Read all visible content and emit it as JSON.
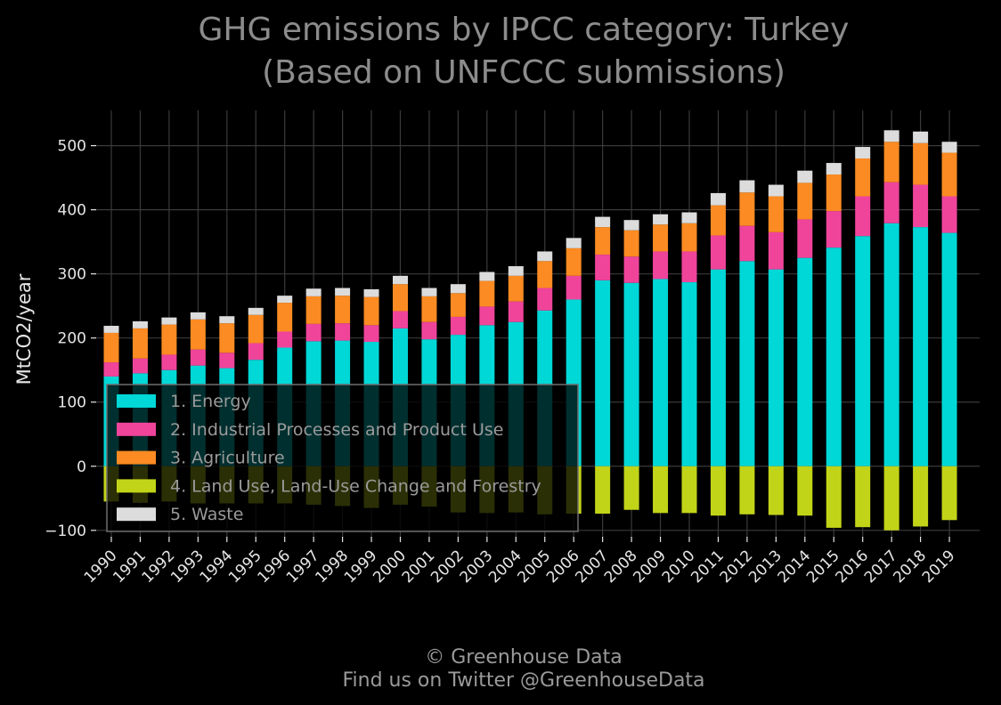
{
  "chart_data": {
    "type": "bar",
    "stacked": true,
    "title": [
      "GHG emissions by IPCC category: Turkey",
      "(Based on UNFCCC submissions)"
    ],
    "ylabel": "MtCO2/year",
    "xlabel": "",
    "ylim": [
      -110,
      555
    ],
    "yticks": [
      -100,
      0,
      100,
      200,
      300,
      400,
      500
    ],
    "ytick_labels": [
      "−100",
      "0",
      "100",
      "200",
      "300",
      "400",
      "500"
    ],
    "grid": true,
    "legend_position": "lower-left",
    "categories": [
      "1990",
      "1991",
      "1992",
      "1993",
      "1994",
      "1995",
      "1996",
      "1997",
      "1998",
      "1999",
      "2000",
      "2001",
      "2002",
      "2003",
      "2004",
      "2005",
      "2006",
      "2007",
      "2008",
      "2009",
      "2010",
      "2011",
      "2012",
      "2013",
      "2014",
      "2015",
      "2016",
      "2017",
      "2018",
      "2019"
    ],
    "series": [
      {
        "name": "1. Energy",
        "color": "#00d7d7",
        "values": [
          140,
          145,
          150,
          157,
          153,
          166,
          185,
          195,
          196,
          194,
          215,
          198,
          205,
          220,
          225,
          243,
          260,
          290,
          286,
          292,
          287,
          307,
          320,
          307,
          325,
          341,
          359,
          379,
          373,
          364
        ]
      },
      {
        "name": "2. Industrial Processes and Product Use",
        "color": "#f0449b",
        "values": [
          22,
          23,
          24,
          25,
          24,
          26,
          25,
          27,
          27,
          26,
          27,
          27,
          28,
          29,
          32,
          35,
          37,
          40,
          41,
          43,
          48,
          53,
          55,
          58,
          60,
          57,
          62,
          64,
          66,
          57
        ]
      },
      {
        "name": "3. Agriculture",
        "color": "#fb8b22",
        "values": [
          46,
          47,
          47,
          47,
          46,
          44,
          45,
          43,
          43,
          44,
          42,
          40,
          37,
          40,
          40,
          42,
          43,
          43,
          41,
          42,
          44,
          47,
          52,
          56,
          57,
          57,
          59,
          63,
          65,
          68
        ]
      },
      {
        "name": "4. Land Use, Land-Use Change and Forestry",
        "color": "#c2d418",
        "values": [
          -55,
          -57,
          -55,
          -58,
          -58,
          -58,
          -58,
          -60,
          -62,
          -65,
          -60,
          -63,
          -72,
          -73,
          -72,
          -75,
          -74,
          -74,
          -68,
          -73,
          -73,
          -77,
          -75,
          -76,
          -77,
          -96,
          -95,
          -100,
          -94,
          -84
        ]
      },
      {
        "name": "5. Waste",
        "color": "#dcdcdc",
        "values": [
          11,
          11,
          11,
          11,
          11,
          11,
          11,
          12,
          12,
          12,
          13,
          13,
          14,
          14,
          15,
          15,
          16,
          16,
          16,
          16,
          17,
          19,
          19,
          18,
          19,
          18,
          18,
          18,
          18,
          17
        ]
      }
    ]
  },
  "credits": [
    "© Greenhouse Data",
    "Find us on Twitter @GreenhouseData"
  ]
}
